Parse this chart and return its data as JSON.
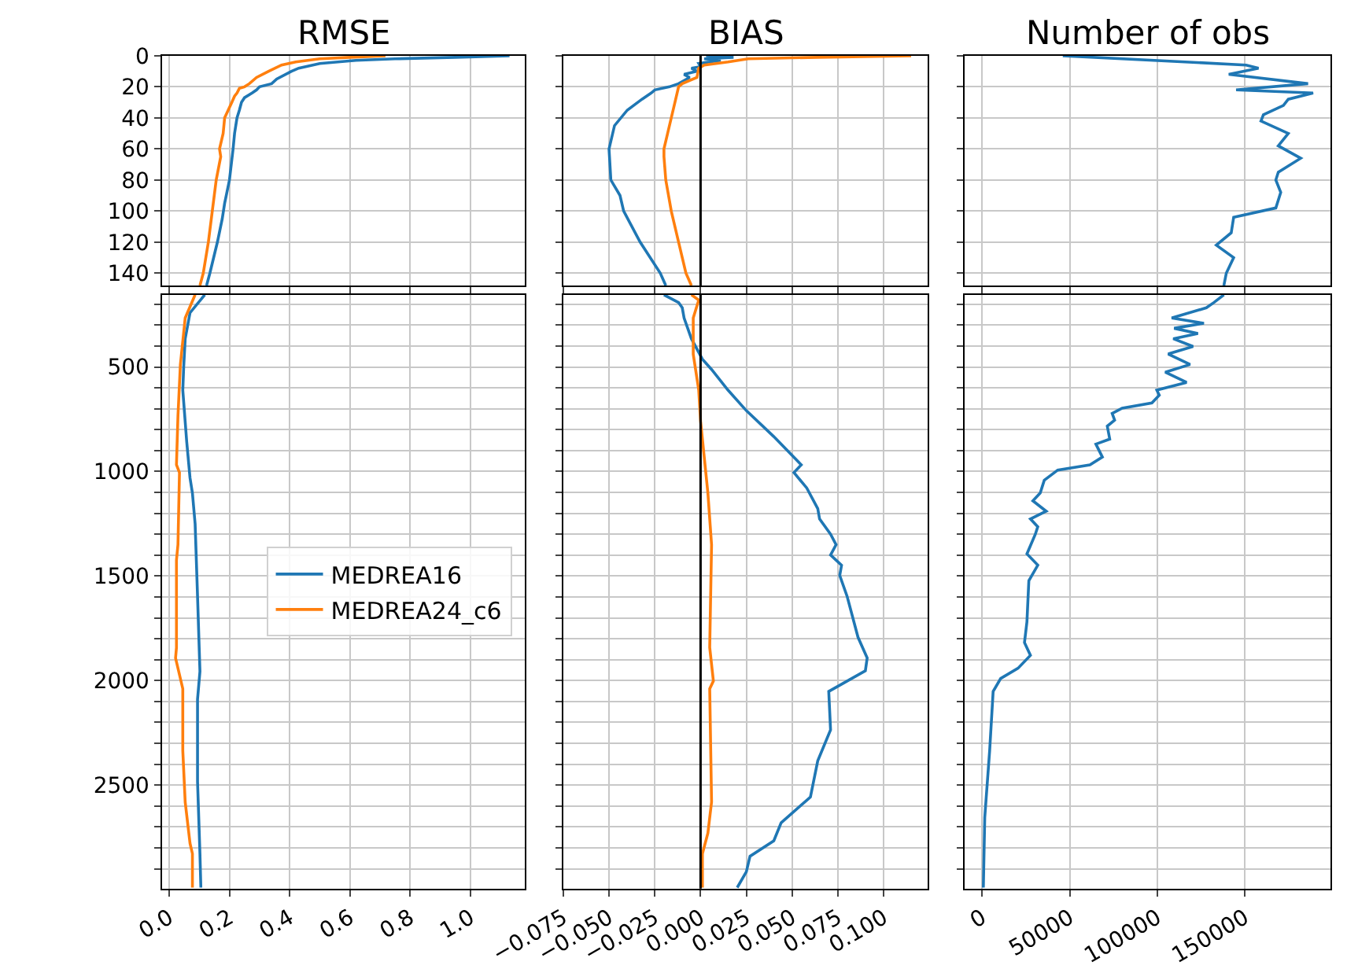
{
  "chart_data": [
    {
      "type": "line",
      "title": "RMSE",
      "grid": true,
      "tick_labels": "y",
      "xlim": [
        -0.025,
        1.18
      ],
      "ylim": [
        148,
        0
      ],
      "xticks": [
        0,
        0.2,
        0.4,
        0.6,
        0.8,
        1.0
      ],
      "yticks": [
        0,
        20,
        40,
        60,
        80,
        100,
        120,
        140
      ],
      "series": [
        {
          "color": "#1f77b4",
          "x": [
            1.13,
            0.95,
            0.75,
            0.62,
            0.5,
            0.43,
            0.406,
            0.357,
            0.34,
            0.3,
            0.29,
            0.275,
            0.25,
            0.24,
            0.233,
            0.225,
            0.217,
            0.212,
            0.2,
            0.184,
            0.176,
            0.16,
            0.135,
            0.124
          ],
          "values": [
            0,
            1,
            2,
            3,
            5,
            8,
            10,
            15,
            18,
            20,
            22,
            24,
            27,
            30,
            35,
            40,
            50,
            60,
            80,
            95,
            105,
            120,
            140,
            148
          ]
        },
        {
          "color": "#ff7f0e",
          "x": [
            0.718,
            0.6,
            0.5,
            0.42,
            0.373,
            0.33,
            0.29,
            0.266,
            0.25,
            0.233,
            0.225,
            0.217,
            0.208,
            0.184,
            0.179,
            0.167,
            0.171,
            0.156,
            0.143,
            0.13,
            0.113,
            0.102
          ],
          "values": [
            0,
            1,
            2,
            4,
            6,
            10,
            14,
            18,
            20,
            21,
            24,
            26,
            30,
            40,
            50,
            60,
            65,
            80,
            100,
            120,
            140,
            148
          ]
        }
      ]
    },
    {
      "type": "line",
      "title": "BIAS",
      "grid": true,
      "tick_labels": false,
      "xlim": [
        -0.075,
        0.124
      ],
      "ylim": [
        148,
        0
      ],
      "xticks": [
        -0.075,
        -0.05,
        -0.025,
        0,
        0.025,
        0.05,
        0.075,
        0.1
      ],
      "yticks": [
        0,
        20,
        40,
        60,
        80,
        100,
        120,
        140
      ],
      "ref_lines": [
        {
          "axis": "x",
          "value": 0,
          "color": "#000000"
        }
      ],
      "series": [
        {
          "color": "#1f77b4",
          "x": [
            0.003,
            0.018,
            0.002,
            0.011,
            -0.001,
            0.0,
            -0.005,
            -0.002,
            -0.009,
            -0.006,
            -0.012,
            -0.017,
            -0.025,
            -0.027,
            -0.032,
            -0.04,
            -0.047,
            -0.05,
            -0.049,
            -0.044,
            -0.042,
            -0.033,
            -0.022,
            -0.019
          ],
          "values": [
            0,
            1,
            2,
            3,
            5,
            7,
            8,
            10,
            12,
            14,
            18,
            20,
            22,
            24,
            28,
            35,
            45,
            60,
            80,
            90,
            100,
            120,
            140,
            148
          ]
        },
        {
          "color": "#ff7f0e",
          "x": [
            0.115,
            0.064,
            0.026,
            0.015,
            0.002,
            -0.001,
            -0.002,
            -0.01,
            -0.012,
            -0.014,
            -0.016,
            -0.018,
            -0.02,
            -0.02,
            -0.019,
            -0.016,
            -0.012,
            -0.008,
            -0.005
          ],
          "values": [
            0,
            1,
            2,
            4,
            6,
            8,
            14,
            18,
            20,
            30,
            40,
            50,
            60,
            65,
            80,
            100,
            120,
            140,
            148
          ]
        }
      ]
    },
    {
      "type": "line",
      "title": "Number of obs",
      "grid": true,
      "tick_labels": false,
      "xlim": [
        -10000,
        199000
      ],
      "ylim": [
        148,
        0
      ],
      "xticks": [
        0,
        50000,
        100000,
        150000
      ],
      "yticks": [
        0,
        20,
        40,
        60,
        80,
        100,
        120,
        140
      ],
      "series": [
        {
          "color": "#1f77b4",
          "x": [
            46000,
            150700,
            157800,
            140800,
            186100,
            145000,
            189000,
            174800,
            172000,
            160600,
            159200,
            174800,
            169100,
            181900,
            169100,
            167700,
            170500,
            167700,
            143600,
            142200,
            133700,
            143600,
            139400,
            138000
          ],
          "values": [
            0,
            6,
            8,
            12,
            18,
            22,
            24,
            28,
            32,
            38,
            42,
            50,
            58,
            66,
            75,
            80,
            88,
            98,
            104,
            114,
            122,
            130,
            140,
            148
          ]
        }
      ]
    },
    {
      "type": "line",
      "grid": true,
      "legend": "right",
      "xlim": [
        -0.025,
        1.18
      ],
      "ylim": [
        2995,
        155
      ],
      "xticks": [
        {
          "value": 0,
          "label": "0.0"
        },
        {
          "value": 0.2,
          "label": "0.2"
        },
        {
          "value": 0.4,
          "label": "0.4"
        },
        {
          "value": 0.6,
          "label": "0.6"
        },
        {
          "value": 0.8,
          "label": "0.8"
        },
        {
          "value": 1.0,
          "label": "1.0"
        }
      ],
      "yticks": [
        {
          "value": 200,
          "label": null
        },
        {
          "value": 300,
          "label": null
        },
        {
          "value": 400,
          "label": null
        },
        500,
        {
          "value": 600,
          "label": null
        },
        {
          "value": 700,
          "label": null
        },
        {
          "value": 800,
          "label": null
        },
        {
          "value": 900,
          "label": null
        },
        1000,
        {
          "value": 1100,
          "label": null
        },
        {
          "value": 1200,
          "label": null
        },
        {
          "value": 1300,
          "label": null
        },
        {
          "value": 1400,
          "label": null
        },
        1500,
        {
          "value": 1600,
          "label": null
        },
        {
          "value": 1700,
          "label": null
        },
        {
          "value": 1800,
          "label": null
        },
        {
          "value": 1900,
          "label": null
        },
        2000,
        {
          "value": 2100,
          "label": null
        },
        {
          "value": 2200,
          "label": null
        },
        {
          "value": 2300,
          "label": null
        },
        {
          "value": 2400,
          "label": null
        },
        2500,
        {
          "value": 2600,
          "label": null
        },
        {
          "value": 2700,
          "label": null
        },
        {
          "value": 2800,
          "label": null
        },
        {
          "value": 2900,
          "label": null
        }
      ],
      "series": [
        {
          "name": "MEDREA16",
          "color": "#1f77b4",
          "x": [
            0.118,
            0.069,
            0.053,
            0.048,
            0.045,
            0.058,
            0.069,
            0.077,
            0.086,
            0.094,
            0.102,
            0.094,
            0.094,
            0.102,
            0.105
          ],
          "values": [
            155,
            241,
            365,
            500,
            611,
            857,
            1030,
            1103,
            1251,
            1596,
            1956,
            2089,
            2483,
            2828,
            2990
          ]
        },
        {
          "name": "MEDREA24_c6",
          "color": "#ff7f0e",
          "x": [
            0.086,
            0.053,
            0.037,
            0.029,
            0.024,
            0.034,
            0.029,
            0.024,
            0.024,
            0.021,
            0.045,
            0.045,
            0.053,
            0.069,
            0.077,
            0.077
          ],
          "values": [
            155,
            266,
            488,
            734,
            968,
            1005,
            1350,
            1424,
            1842,
            1892,
            2039,
            2335,
            2581,
            2778,
            2828,
            2990
          ]
        }
      ]
    },
    {
      "type": "line",
      "grid": true,
      "tick_labels": "x",
      "xlim": [
        -0.075,
        0.124
      ],
      "ylim": [
        2995,
        155
      ],
      "xticks": [
        {
          "value": -0.075,
          "label": "−0.075"
        },
        {
          "value": -0.05,
          "label": "−0.050"
        },
        {
          "value": -0.025,
          "label": "−0.025"
        },
        {
          "value": 0,
          "label": "0.000"
        },
        {
          "value": 0.025,
          "label": "0.025"
        },
        {
          "value": 0.05,
          "label": "0.050"
        },
        {
          "value": 0.075,
          "label": "0.075"
        },
        {
          "value": 0.1,
          "label": "0.100"
        }
      ],
      "yticks": [
        200,
        300,
        400,
        500,
        600,
        700,
        800,
        900,
        1000,
        1100,
        1200,
        1300,
        1400,
        1500,
        1600,
        1700,
        1800,
        1900,
        2000,
        2100,
        2200,
        2300,
        2400,
        2500,
        2600,
        2700,
        2800,
        2900
      ],
      "ref_lines": [
        {
          "axis": "x",
          "value": 0,
          "color": "#000000"
        }
      ],
      "series": [
        {
          "color": "#1f77b4",
          "x": [
            -0.02,
            -0.012,
            -0.01,
            -0.009,
            -0.005,
            0.001,
            0.006,
            0.015,
            0.025,
            0.04,
            0.055,
            0.051,
            0.058,
            0.064,
            0.065,
            0.071,
            0.074,
            0.071,
            0.077,
            0.076,
            0.08,
            0.086,
            0.091,
            0.09,
            0.07,
            0.071,
            0.064,
            0.06,
            0.044,
            0.04,
            0.027,
            0.025,
            0.02
          ],
          "values": [
            155,
            192,
            217,
            266,
            365,
            463,
            512,
            611,
            709,
            833,
            968,
            1005,
            1079,
            1177,
            1227,
            1300,
            1350,
            1399,
            1448,
            1497,
            1596,
            1793,
            1892,
            1953,
            2052,
            2236,
            2384,
            2557,
            2680,
            2766,
            2840,
            2914,
            2990
          ]
        },
        {
          "color": "#ff7f0e",
          "x": [
            -0.005,
            -0.001,
            -0.004,
            -0.004,
            -0.001,
            0.0,
            0.004,
            0.006,
            0.005,
            0.007,
            0.005,
            0.006,
            0.004,
            0.001,
            0.001
          ],
          "values": [
            155,
            180,
            266,
            439,
            611,
            759,
            1103,
            1350,
            1842,
            2002,
            2039,
            2581,
            2729,
            2828,
            2990
          ]
        }
      ]
    },
    {
      "type": "line",
      "grid": true,
      "tick_labels": "x",
      "xlim": [
        -10000,
        199000
      ],
      "ylim": [
        2995,
        155
      ],
      "xticks": [
        0,
        50000,
        100000,
        150000
      ],
      "yticks": [
        200,
        300,
        400,
        500,
        600,
        700,
        800,
        900,
        1000,
        1100,
        1200,
        1300,
        1400,
        1500,
        1600,
        1700,
        1800,
        1900,
        2000,
        2100,
        2200,
        2300,
        2400,
        2500,
        2600,
        2700,
        2800,
        2900
      ],
      "series": [
        {
          "color": "#1f77b4",
          "x": [
            138000,
            132300,
            128000,
            108200,
            126600,
            109600,
            123200,
            109100,
            120400,
            106200,
            118700,
            104500,
            116700,
            99700,
            101100,
            96900,
            79900,
            74200,
            75600,
            71400,
            72800,
            64900,
            68600,
            61500,
            43100,
            35400,
            33100,
            28900,
            36500,
            27500,
            31700,
            30300,
            25500,
            31700,
            26600,
            25500,
            24100,
            27500,
            20400,
            10500,
            6200,
            4200,
            1400,
            600
          ],
          "values": [
            155,
            192,
            217,
            266,
            291,
            315,
            340,
            365,
            402,
            438,
            488,
            525,
            574,
            611,
            635,
            672,
            697,
            722,
            754,
            783,
            845,
            869,
            931,
            968,
            993,
            1042,
            1103,
            1140,
            1190,
            1227,
            1264,
            1300,
            1394,
            1448,
            1522,
            1719,
            1818,
            1879,
            1941,
            1990,
            2052,
            2335,
            2655,
            2990
          ]
        }
      ]
    }
  ]
}
